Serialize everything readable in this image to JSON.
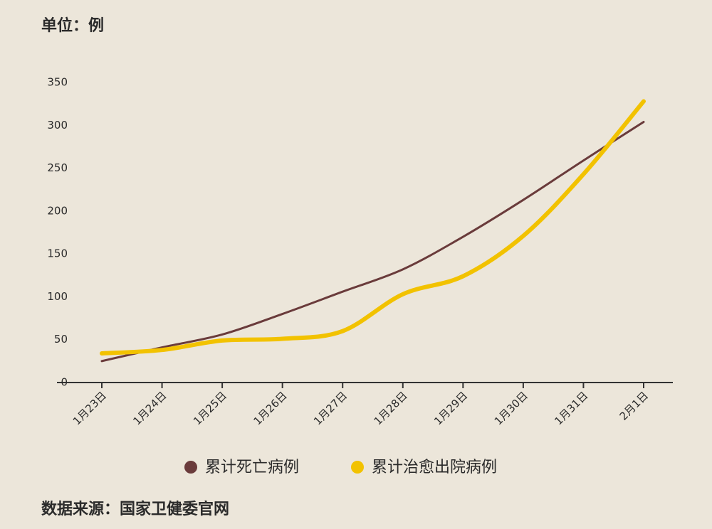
{
  "chart_data": {
    "type": "line",
    "title": "单位：例",
    "source": "数据来源：国家卫健委官网",
    "categories": [
      "1月23日",
      "1月24日",
      "1月25日",
      "1月26日",
      "1月27日",
      "1月28日",
      "1月29日",
      "1月30日",
      "1月31日",
      "2月1日"
    ],
    "series": [
      {
        "name": "累计死亡病例",
        "color": "#6a3b3b",
        "values": [
          25,
          41,
          56,
          80,
          106,
          132,
          170,
          213,
          259,
          304
        ]
      },
      {
        "name": "累计治愈出院病例",
        "color": "#f2c200",
        "values": [
          34,
          38,
          49,
          51,
          60,
          103,
          124,
          171,
          243,
          328
        ]
      }
    ],
    "ylim": [
      0,
      350
    ],
    "yticks": [
      0,
      50,
      100,
      150,
      200,
      250,
      300,
      350
    ],
    "grid": false
  }
}
